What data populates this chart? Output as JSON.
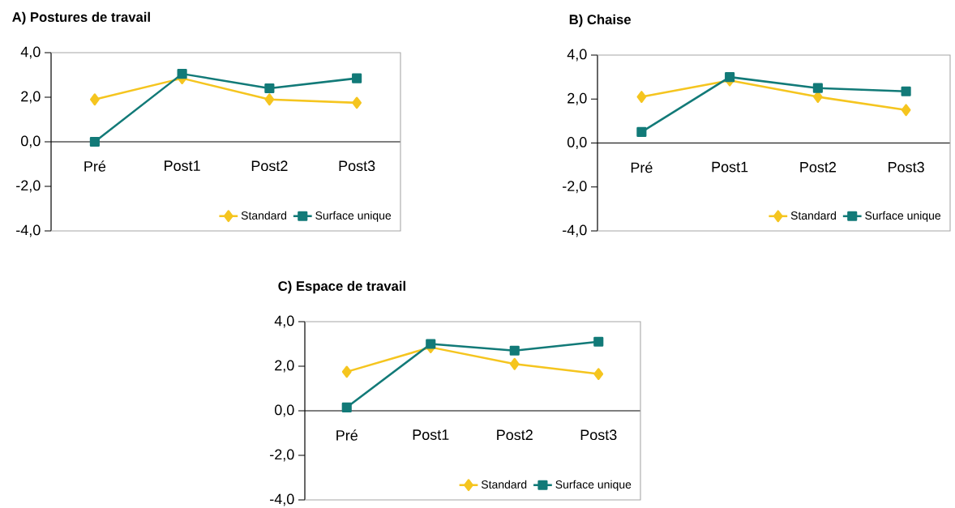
{
  "chart_data": [
    {
      "type": "line",
      "title": "A) Postures de travail",
      "categories": [
        "Pré",
        "Post1",
        "Post2",
        "Post3"
      ],
      "ylim": [
        -4,
        4
      ],
      "yticks": [
        {
          "value": -4,
          "label": "-4,0"
        },
        {
          "value": -2,
          "label": "-2,0"
        },
        {
          "value": 0,
          "label": "0,0"
        },
        {
          "value": 2,
          "label": "2,0"
        },
        {
          "value": 4,
          "label": "4,0"
        }
      ],
      "legend": "bottom right",
      "series": [
        {
          "name": "Standard",
          "color": "#f5c51f",
          "marker": "diamond",
          "values": [
            1.9,
            2.85,
            1.9,
            1.75
          ]
        },
        {
          "name": "Surface unique",
          "color": "#127a78",
          "marker": "square",
          "values": [
            0.0,
            3.05,
            2.4,
            2.85
          ]
        }
      ]
    },
    {
      "type": "line",
      "title": "B) Chaise",
      "categories": [
        "Pré",
        "Post1",
        "Post2",
        "Post3"
      ],
      "ylim": [
        -4,
        4
      ],
      "yticks": [
        {
          "value": -4,
          "label": "-4,0"
        },
        {
          "value": -2,
          "label": "-2,0"
        },
        {
          "value": 0,
          "label": "0,0"
        },
        {
          "value": 2,
          "label": "2,0"
        },
        {
          "value": 4,
          "label": "4,0"
        }
      ],
      "legend": "bottom right",
      "series": [
        {
          "name": "Standard",
          "color": "#f5c51f",
          "marker": "diamond",
          "values": [
            2.1,
            2.85,
            2.1,
            1.5
          ]
        },
        {
          "name": "Surface unique",
          "color": "#127a78",
          "marker": "square",
          "values": [
            0.5,
            3.0,
            2.5,
            2.35
          ]
        }
      ]
    },
    {
      "type": "line",
      "title": "C) Espace de travail",
      "categories": [
        "Pré",
        "Post1",
        "Post2",
        "Post3"
      ],
      "ylim": [
        -4,
        4
      ],
      "yticks": [
        {
          "value": -4,
          "label": "-4,0"
        },
        {
          "value": -2,
          "label": "-2,0"
        },
        {
          "value": 0,
          "label": "0,0"
        },
        {
          "value": 2,
          "label": "2,0"
        },
        {
          "value": 4,
          "label": "4,0"
        }
      ],
      "legend": "bottom right",
      "series": [
        {
          "name": "Standard",
          "color": "#f5c51f",
          "marker": "diamond",
          "values": [
            1.75,
            2.85,
            2.1,
            1.65
          ]
        },
        {
          "name": "Surface unique",
          "color": "#127a78",
          "marker": "square",
          "values": [
            0.15,
            3.0,
            2.7,
            3.1
          ]
        }
      ]
    }
  ]
}
